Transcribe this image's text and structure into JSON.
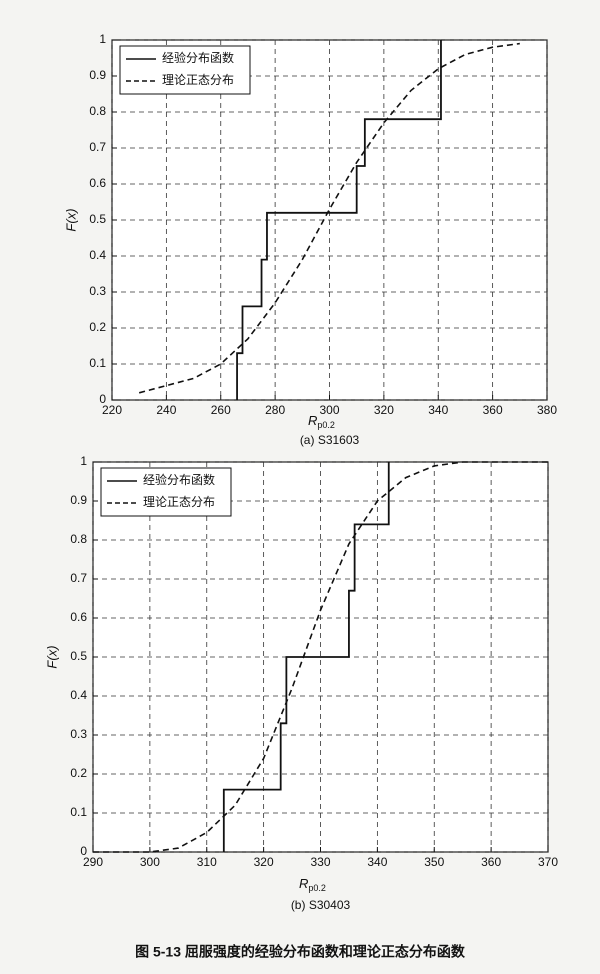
{
  "chart_data": [
    {
      "type": "line",
      "caption": "(a) S31603",
      "x_label": "R",
      "x_label_subscript": "p0.2",
      "y_label": "F(x)",
      "xlim": [
        220,
        380
      ],
      "xticks": [
        220,
        240,
        260,
        280,
        300,
        320,
        340,
        360,
        380
      ],
      "ylim": [
        0,
        1
      ],
      "yticks": [
        0,
        0.1,
        0.2,
        0.3,
        0.4,
        0.5,
        0.6,
        0.7,
        0.8,
        0.9,
        1
      ],
      "grid": true,
      "legend": "upper left",
      "series": [
        {
          "name": "经验分布函数",
          "color": "#111111",
          "step": true,
          "x": [
            266,
            268,
            275,
            277,
            310,
            313,
            341
          ],
          "values": [
            0.13,
            0.26,
            0.39,
            0.52,
            0.65,
            0.78,
            1
          ]
        },
        {
          "name": "理论正态分布",
          "color": "#111111",
          "dashed": true,
          "x": [
            230,
            240,
            250,
            260,
            270,
            280,
            290,
            300,
            310,
            320,
            330,
            340,
            350,
            360,
            370
          ],
          "values": [
            0.02,
            0.04,
            0.06,
            0.1,
            0.17,
            0.27,
            0.39,
            0.53,
            0.66,
            0.77,
            0.86,
            0.92,
            0.96,
            0.98,
            0.99
          ]
        }
      ]
    },
    {
      "type": "line",
      "caption": "(b) S30403",
      "x_label": "R",
      "x_label_subscript": "p0.2",
      "y_label": "F(x)",
      "xlim": [
        290,
        370
      ],
      "xticks": [
        290,
        300,
        310,
        320,
        330,
        340,
        350,
        360,
        370
      ],
      "ylim": [
        0,
        1
      ],
      "yticks": [
        0,
        0.1,
        0.2,
        0.3,
        0.4,
        0.5,
        0.6,
        0.7,
        0.8,
        0.9,
        1
      ],
      "grid": true,
      "legend": "upper left",
      "series": [
        {
          "name": "经验分布函数",
          "color": "#111111",
          "step": true,
          "x": [
            313,
            323,
            324,
            335,
            336,
            342
          ],
          "values": [
            0.16,
            0.33,
            0.5,
            0.67,
            0.84,
            1
          ]
        },
        {
          "name": "理论正态分布",
          "color": "#111111",
          "dashed": true,
          "x": [
            290,
            295,
            300,
            305,
            310,
            315,
            320,
            325,
            330,
            335,
            340,
            345,
            350,
            355,
            360,
            365,
            370
          ],
          "values": [
            0,
            0,
            0,
            0.01,
            0.05,
            0.12,
            0.24,
            0.42,
            0.62,
            0.79,
            0.9,
            0.96,
            0.99,
            1,
            1,
            1,
            1
          ]
        }
      ]
    }
  ],
  "figure_caption": "图 5-13   屈服强度的经验分布函数和理论正态分布函数"
}
